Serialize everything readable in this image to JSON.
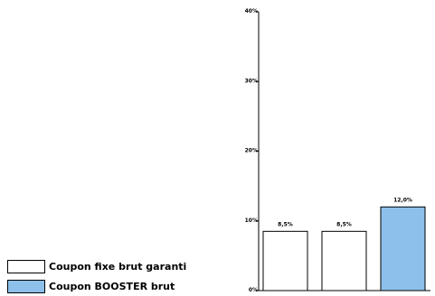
{
  "chart_data": {
    "type": "bar",
    "categories": [
      "",
      "",
      ""
    ],
    "values": [
      8.5,
      8.5,
      12.0
    ],
    "value_labels": [
      "8,5%",
      "8,5%",
      "12,0%"
    ],
    "bar_series": [
      "fixe",
      "fixe",
      "booster"
    ],
    "ylim": [
      0,
      40
    ],
    "yticks": [
      {
        "value": 0,
        "label": "0%"
      },
      {
        "value": 10,
        "label": "10%"
      },
      {
        "value": 20,
        "label": "20%"
      },
      {
        "value": 30,
        "label": "30%"
      },
      {
        "value": 40,
        "label": "40%"
      }
    ],
    "grid": false,
    "legend_position": "bottom-left",
    "series": [
      {
        "key": "fixe",
        "name": "Coupon fixe brut garanti",
        "color": "#ffffff"
      },
      {
        "key": "booster",
        "name": "Coupon BOOSTER brut",
        "color": "#8dc0ea"
      }
    ],
    "title": "",
    "xlabel": "",
    "ylabel": ""
  }
}
